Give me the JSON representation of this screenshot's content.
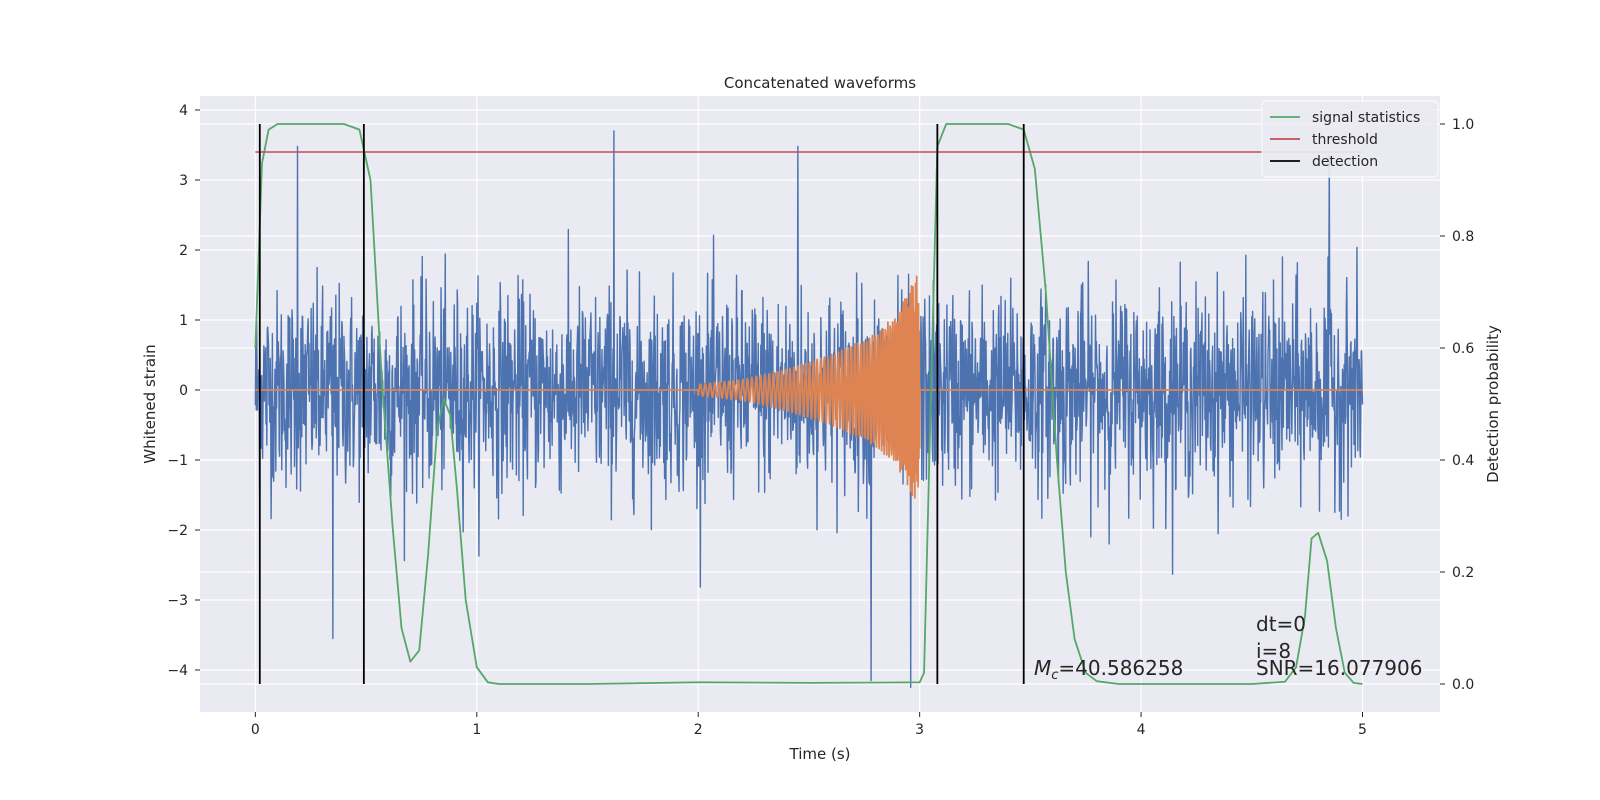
{
  "chart_data": {
    "type": "line",
    "title": "Concatenated waveforms",
    "xlabel": "Time (s)",
    "ylabel": "Whitened strain",
    "y2label": "Detection probability",
    "xlim": [
      -0.25,
      5.35
    ],
    "ylim": [
      -4.6,
      4.2
    ],
    "y2lim": [
      -0.05,
      1.05
    ],
    "x_ticks": [
      0,
      1,
      2,
      3,
      4,
      5
    ],
    "x_tick_labels": [
      "0",
      "1",
      "2",
      "3",
      "4",
      "5"
    ],
    "y_ticks": [
      -4,
      -3,
      -2,
      -1,
      0,
      1,
      2,
      3,
      4
    ],
    "y_tick_labels": [
      "−4",
      "−3",
      "−2",
      "−1",
      "0",
      "1",
      "2",
      "3",
      "4"
    ],
    "y2_ticks": [
      0.0,
      0.2,
      0.4,
      0.6,
      0.8,
      1.0
    ],
    "y2_tick_labels": [
      "0.0",
      "0.2",
      "0.4",
      "0.6",
      "0.8",
      "1.0"
    ],
    "grid": true,
    "legend_placement": "top-right",
    "background_color": "#eaeaf2",
    "series": [
      {
        "kind": "noise",
        "axis": "left",
        "color": "#4c72b0",
        "x_range": [
          0,
          5
        ],
        "amplitude_std": 0.7,
        "approx_range": [
          -4.2,
          3.75
        ],
        "peak_points": [
          [
            0.19,
            3.48
          ],
          [
            1.62,
            3.7
          ],
          [
            2.45,
            3.48
          ],
          [
            2.78,
            -4.15
          ],
          [
            2.96,
            -4.25
          ],
          [
            0.35,
            -3.55
          ],
          [
            4.85,
            3.35
          ]
        ]
      },
      {
        "kind": "chirp",
        "axis": "left",
        "color": "#dd8452",
        "x": [
          0,
          2.0,
          2.2,
          2.4,
          2.6,
          2.8,
          2.9,
          2.95,
          2.99,
          3.01,
          5
        ],
        "envelope": [
          0,
          0.08,
          0.15,
          0.3,
          0.5,
          0.8,
          1.1,
          1.4,
          1.7,
          0,
          0
        ]
      },
      {
        "name": "signal statistics",
        "axis": "right",
        "color": "#55a868",
        "x": [
          0,
          0.03,
          0.06,
          0.1,
          0.2,
          0.4,
          0.47,
          0.52,
          0.57,
          0.62,
          0.66,
          0.7,
          0.74,
          0.78,
          0.82,
          0.85,
          0.88,
          0.91,
          0.95,
          1.0,
          1.05,
          1.1,
          1.5,
          2.0,
          2.5,
          3.0,
          3.02,
          3.05,
          3.08,
          3.12,
          3.2,
          3.4,
          3.47,
          3.52,
          3.57,
          3.62,
          3.66,
          3.7,
          3.75,
          3.8,
          3.9,
          4.5,
          4.65,
          4.7,
          4.74,
          4.77,
          4.8,
          4.84,
          4.88,
          4.92,
          4.96,
          5.0
        ],
        "values": [
          0.6,
          0.93,
          0.99,
          1.0,
          1.0,
          1.0,
          0.99,
          0.9,
          0.55,
          0.28,
          0.1,
          0.04,
          0.06,
          0.23,
          0.45,
          0.51,
          0.48,
          0.35,
          0.15,
          0.03,
          0.003,
          0.0,
          0.0,
          0.003,
          0.002,
          0.003,
          0.02,
          0.5,
          0.96,
          1.0,
          1.0,
          1.0,
          0.99,
          0.92,
          0.7,
          0.4,
          0.2,
          0.08,
          0.02,
          0.005,
          0.0,
          0.0,
          0.004,
          0.03,
          0.12,
          0.26,
          0.27,
          0.22,
          0.1,
          0.02,
          0.002,
          0.0
        ]
      },
      {
        "name": "threshold",
        "axis": "right",
        "color": "#c44e52",
        "x": [
          0,
          5
        ],
        "values": [
          0.95,
          0.95
        ]
      },
      {
        "name": "detection",
        "axis": "right",
        "color": "#000000",
        "vlines": [
          0.02,
          0.49,
          3.08,
          3.47
        ],
        "range": [
          0,
          1.0
        ]
      }
    ],
    "legend": [
      "signal statistics",
      "threshold",
      "detection"
    ],
    "annotations": {
      "mc_label": "M",
      "mc_sub": "c",
      "mc_value": "=40.586258",
      "dt": "dt=0",
      "i": "i=8",
      "snr": "SNR=16.077906"
    }
  }
}
